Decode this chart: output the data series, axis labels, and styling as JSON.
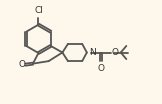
{
  "background_color": "#fdf8eb",
  "line_color": "#555555",
  "line_width": 1.3,
  "text_color": "#333333",
  "font_size": 6.5,
  "xlim": [
    0,
    16
  ],
  "ylim": [
    0,
    10
  ]
}
